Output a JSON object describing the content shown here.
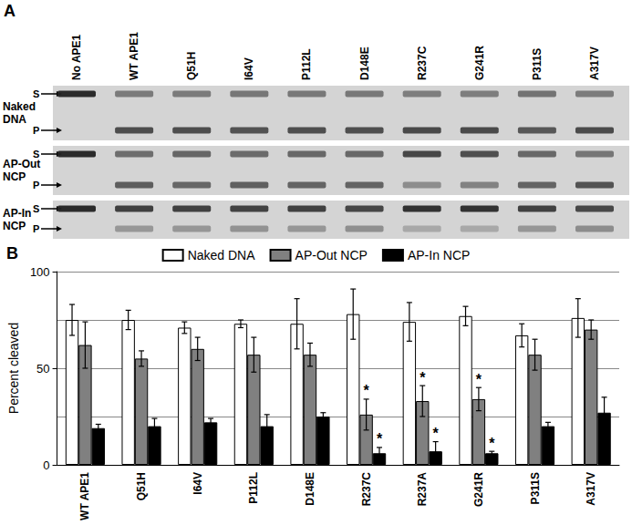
{
  "gel": {
    "panel_label": "A",
    "lanes": [
      "No APE1",
      "WT APE1",
      "Q51H",
      "I64V",
      "P112L",
      "D148E",
      "R237C",
      "G241R",
      "P311S",
      "A317V"
    ],
    "band_labels": [
      "S",
      "P"
    ]
  },
  "chart_data": {
    "type": "bar",
    "title": "B",
    "categories": [
      "WT APE1",
      "Q51H",
      "I64V",
      "P112L",
      "D148E",
      "R237C",
      "R237A",
      "G241R",
      "P311S",
      "A317V"
    ],
    "series": [
      {
        "name": "Naked DNA",
        "color": "#ffffff",
        "values": [
          75,
          75,
          71,
          73,
          73,
          78,
          74,
          77,
          67,
          76
        ],
        "errors": [
          8,
          5,
          3,
          2,
          13,
          13,
          10,
          5,
          6,
          10
        ]
      },
      {
        "name": "AP-Out NCP",
        "color": "#808080",
        "values": [
          62,
          55,
          60,
          57,
          57,
          26,
          33,
          34,
          57,
          70
        ],
        "errors": [
          12,
          4,
          6,
          9,
          6,
          8,
          8,
          6,
          8,
          5
        ]
      },
      {
        "name": "AP-In NCP",
        "color": "#000000",
        "values": [
          19,
          20,
          22,
          20,
          25,
          6,
          7,
          6,
          20,
          27
        ],
        "errors": [
          2,
          4,
          2,
          6,
          2,
          3,
          5,
          1,
          2,
          8
        ]
      }
    ],
    "annotations": [
      {
        "text": "*",
        "series": "AP-Out NCP",
        "category": "R237C"
      },
      {
        "text": "*",
        "series": "AP-Out NCP",
        "category": "R237A"
      },
      {
        "text": "*",
        "series": "AP-Out NCP",
        "category": "G241R"
      },
      {
        "text": "*",
        "series": "AP-In NCP",
        "category": "R237C"
      },
      {
        "text": "*",
        "series": "AP-In NCP",
        "category": "R237A"
      },
      {
        "text": "*",
        "series": "AP-In NCP",
        "category": "G241R"
      }
    ],
    "y_label": "Percent cleaved",
    "ylim": [
      0,
      100
    ],
    "yticks": [
      0,
      50,
      100
    ],
    "grid": true,
    "legend": "top"
  }
}
